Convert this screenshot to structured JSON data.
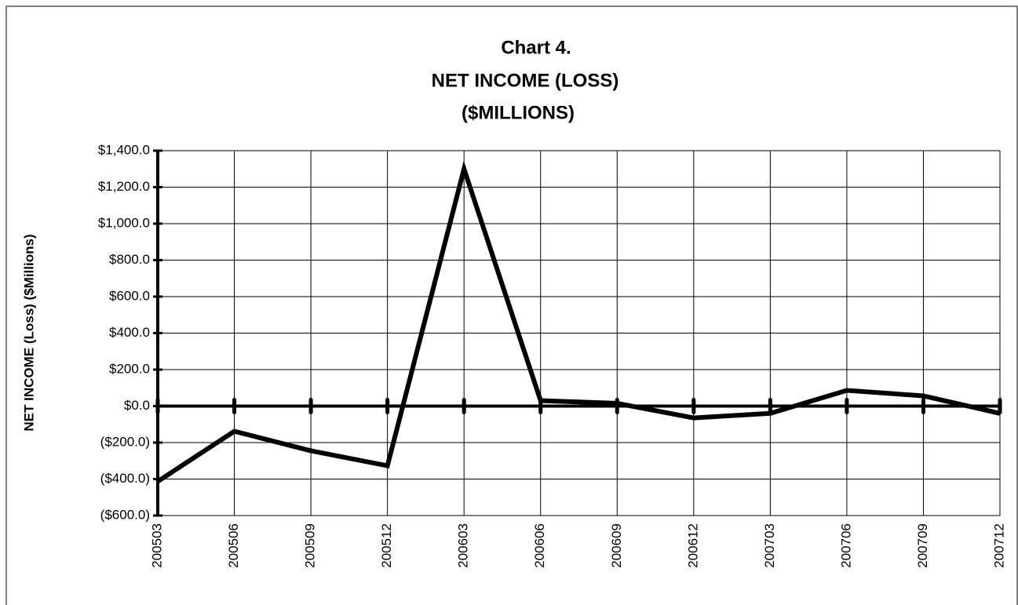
{
  "chart_data": {
    "type": "line",
    "title": [
      "Chart 4.",
      "NET INCOME (LOSS)",
      "($MILLIONS)"
    ],
    "y_label": "NET INCOME (Loss) ($Millions)",
    "categories": [
      "200503",
      "200506",
      "200509",
      "200512",
      "200603",
      "200606",
      "200609",
      "200612",
      "200703",
      "200706",
      "200709",
      "200712"
    ],
    "series": [
      {
        "name": "Net Income (Loss)",
        "color": "#000000",
        "values": [
          -413,
          -138,
          -245,
          -327,
          1300,
          30,
          15,
          -65,
          -40,
          86,
          56,
          -40
        ]
      }
    ],
    "ylim": [
      -600,
      1400
    ],
    "yticks": [
      {
        "value": -600,
        "label": "($600.0)"
      },
      {
        "value": -400,
        "label": "($400.0)"
      },
      {
        "value": -200,
        "label": "($200.0)"
      },
      {
        "value": 0,
        "label": "$0.0"
      },
      {
        "value": 200,
        "label": "$200.0"
      },
      {
        "value": 400,
        "label": "$400.0"
      },
      {
        "value": 600,
        "label": "$600.0"
      },
      {
        "value": 800,
        "label": "$800.0"
      },
      {
        "value": 1000,
        "label": "$1,000.0"
      },
      {
        "value": 1200,
        "label": "$1,200.0"
      },
      {
        "value": 1400,
        "label": "$1,400.0"
      }
    ],
    "grid": true
  }
}
